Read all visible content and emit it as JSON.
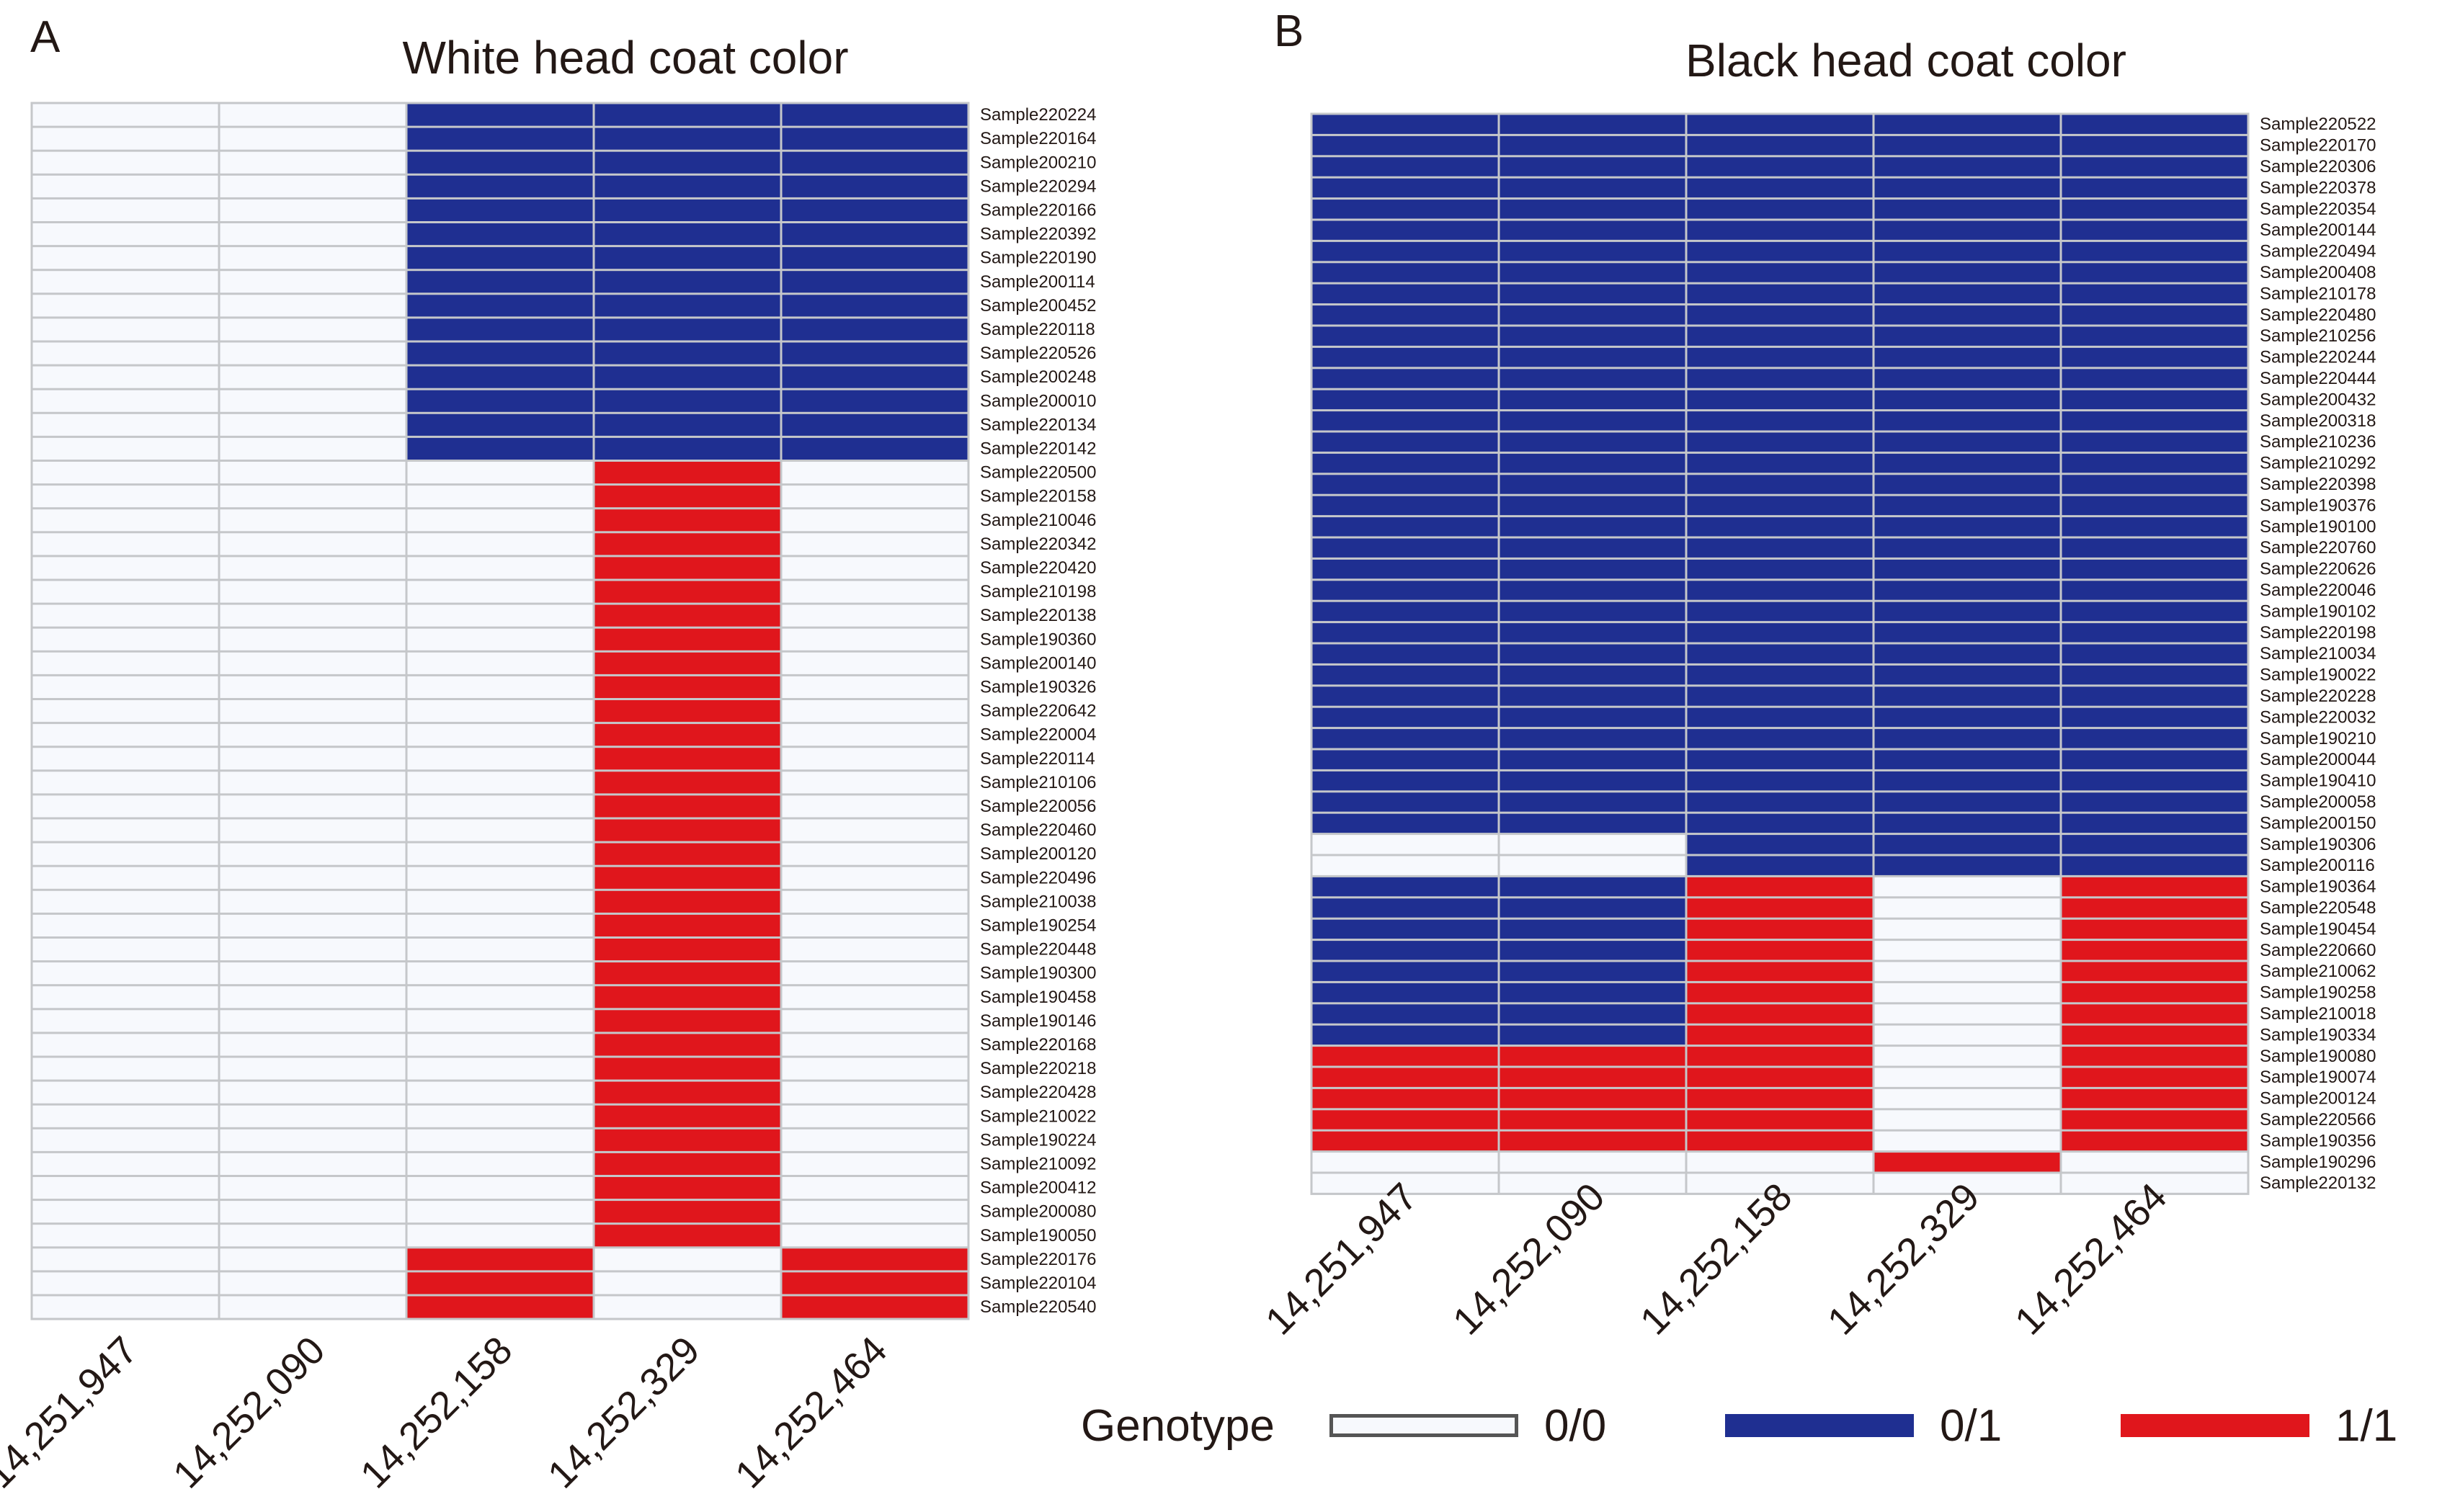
{
  "colors": {
    "g00": "#f7f9fd",
    "g01": "#1f2f91",
    "g11": "#e0161c",
    "grid": "#c5c7ca"
  },
  "chart_data": [
    {
      "type": "heatmap",
      "panel": "A",
      "title": "White head coat color",
      "columns": [
        "14,251,947",
        "14,252,090",
        "14,252,158",
        "14,252,329",
        "14,252,464"
      ],
      "rows": [
        "Sample220224",
        "Sample220164",
        "Sample200210",
        "Sample220294",
        "Sample220166",
        "Sample220392",
        "Sample220190",
        "Sample200114",
        "Sample200452",
        "Sample220118",
        "Sample220526",
        "Sample200248",
        "Sample200010",
        "Sample220134",
        "Sample220142",
        "Sample220500",
        "Sample220158",
        "Sample210046",
        "Sample220342",
        "Sample220420",
        "Sample210198",
        "Sample220138",
        "Sample190360",
        "Sample200140",
        "Sample190326",
        "Sample220642",
        "Sample220004",
        "Sample220114",
        "Sample210106",
        "Sample220056",
        "Sample220460",
        "Sample200120",
        "Sample220496",
        "Sample210038",
        "Sample190254",
        "Sample220448",
        "Sample190300",
        "Sample190458",
        "Sample190146",
        "Sample220168",
        "Sample220218",
        "Sample220428",
        "Sample210022",
        "Sample190224",
        "Sample210092",
        "Sample200412",
        "Sample200080",
        "Sample190050",
        "Sample220176",
        "Sample220104",
        "Sample220540"
      ],
      "groups": [
        {
          "rows": 15,
          "genotypes": [
            "0/0",
            "0/0",
            "0/1",
            "0/1",
            "0/1"
          ]
        },
        {
          "rows": 33,
          "genotypes": [
            "0/0",
            "0/0",
            "0/0",
            "1/1",
            "0/0"
          ]
        },
        {
          "rows": 3,
          "genotypes": [
            "0/0",
            "0/0",
            "1/1",
            "0/0",
            "1/1"
          ]
        }
      ]
    },
    {
      "type": "heatmap",
      "panel": "B",
      "title": "Black head coat color",
      "columns": [
        "14,251,947",
        "14,252,090",
        "14,252,158",
        "14,252,329",
        "14,252,464"
      ],
      "rows": [
        "Sample220522",
        "Sample220170",
        "Sample220306",
        "Sample220378",
        "Sample220354",
        "Sample200144",
        "Sample220494",
        "Sample200408",
        "Sample210178",
        "Sample220480",
        "Sample210256",
        "Sample220244",
        "Sample220444",
        "Sample200432",
        "Sample200318",
        "Sample210236",
        "Sample210292",
        "Sample220398",
        "Sample190376",
        "Sample190100",
        "Sample220760",
        "Sample220626",
        "Sample220046",
        "Sample190102",
        "Sample220198",
        "Sample210034",
        "Sample190022",
        "Sample220228",
        "Sample220032",
        "Sample190210",
        "Sample200044",
        "Sample190410",
        "Sample200058",
        "Sample200150",
        "Sample190306",
        "Sample200116",
        "Sample190364",
        "Sample220548",
        "Sample190454",
        "Sample220660",
        "Sample210062",
        "Sample190258",
        "Sample210018",
        "Sample190334",
        "Sample190080",
        "Sample190074",
        "Sample200124",
        "Sample220566",
        "Sample190356",
        "Sample190296",
        "Sample220132"
      ],
      "groups": [
        {
          "rows": 34,
          "genotypes": [
            "0/1",
            "0/1",
            "0/1",
            "0/1",
            "0/1"
          ]
        },
        {
          "rows": 2,
          "genotypes": [
            "0/0",
            "0/0",
            "0/1",
            "0/1",
            "0/1"
          ]
        },
        {
          "rows": 8,
          "genotypes": [
            "0/1",
            "0/1",
            "1/1",
            "0/0",
            "1/1"
          ]
        },
        {
          "rows": 5,
          "genotypes": [
            "1/1",
            "1/1",
            "1/1",
            "0/0",
            "1/1"
          ]
        },
        {
          "rows": 1,
          "genotypes": [
            "0/0",
            "0/0",
            "0/0",
            "1/1",
            "0/0"
          ]
        },
        {
          "rows": 1,
          "genotypes": [
            "0/0",
            "0/0",
            "0/0",
            "0/0",
            "0/0"
          ]
        }
      ]
    }
  ],
  "legend": {
    "title": "Genotype",
    "items": [
      {
        "label": "0/0",
        "color": "#f7f9fd",
        "border": "#555555"
      },
      {
        "label": "0/1",
        "color": "#1f2f91",
        "border": "#1f2f91"
      },
      {
        "label": "1/1",
        "color": "#e0161c",
        "border": "#e0161c"
      }
    ]
  }
}
